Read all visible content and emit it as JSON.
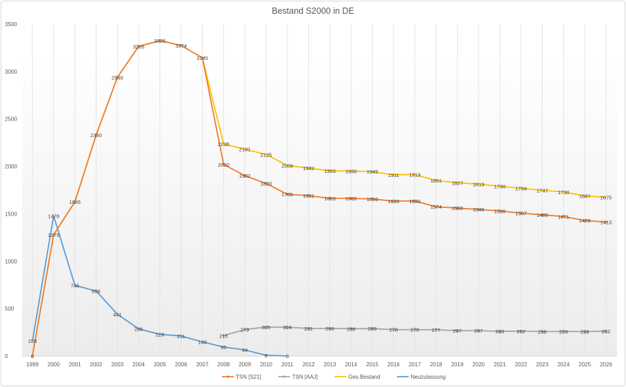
{
  "chart_data": {
    "type": "line",
    "title": "Bestand S2000 in DE",
    "xlabel": "",
    "ylabel": "",
    "ylim": [
      0,
      3500
    ],
    "yticks": [
      0,
      500,
      1000,
      1500,
      2000,
      2500,
      3000,
      3500
    ],
    "grid": "vertical",
    "legend": "bottom",
    "x": [
      1999,
      2000,
      2001,
      2002,
      2003,
      2004,
      2005,
      2006,
      2007,
      2008,
      2009,
      2010,
      2011,
      2012,
      2013,
      2014,
      2015,
      2016,
      2017,
      2018,
      2019,
      2020,
      2021,
      2022,
      2023,
      2024,
      2025,
      2026
    ],
    "series": [
      {
        "name": "TSN [S21]",
        "color": "#ED7D31",
        "markers": true,
        "values": [
          0,
          1279,
          1626,
          2330,
          2939,
          3265,
          3326,
          3274,
          3145,
          2020,
          1902,
          1820,
          1705,
          1691,
          1663,
          1662,
          1656,
          1633,
          1635,
          1574,
          1560,
          1546,
          1530,
          1507,
          1489,
          1471,
          1429,
          1413
        ]
      },
      {
        "name": "TSN [AAJ]",
        "color": "#A5A5A5",
        "markers": true,
        "values": [
          null,
          null,
          null,
          null,
          null,
          null,
          null,
          null,
          null,
          215,
          279,
          305,
          304,
          291,
          290,
          288,
          289,
          278,
          278,
          277,
          267,
          267,
          260,
          262,
          258,
          259,
          258,
          262
        ]
      },
      {
        "name": "Ges.Bestand",
        "color": "#FFC000",
        "markers": false,
        "values": [
          0,
          1279,
          1626,
          2330,
          2939,
          3265,
          3326,
          3274,
          3145,
          2235,
          2181,
          2125,
          2009,
          1982,
          1953,
          1950,
          1945,
          1911,
          1913,
          1851,
          1827,
          1813,
          1790,
          1769,
          1747,
          1730,
          1687,
          1675
        ]
      },
      {
        "name": "Neuzulassung",
        "color": "#5B9BD5",
        "markers": false,
        "values": [
          159,
          1478,
          745,
          686,
          441,
          286,
          229,
          211,
          149,
          95,
          64,
          8,
          0,
          null,
          null,
          null,
          null,
          null,
          null,
          null,
          null,
          null,
          null,
          null,
          null,
          null,
          null,
          null
        ]
      }
    ]
  }
}
